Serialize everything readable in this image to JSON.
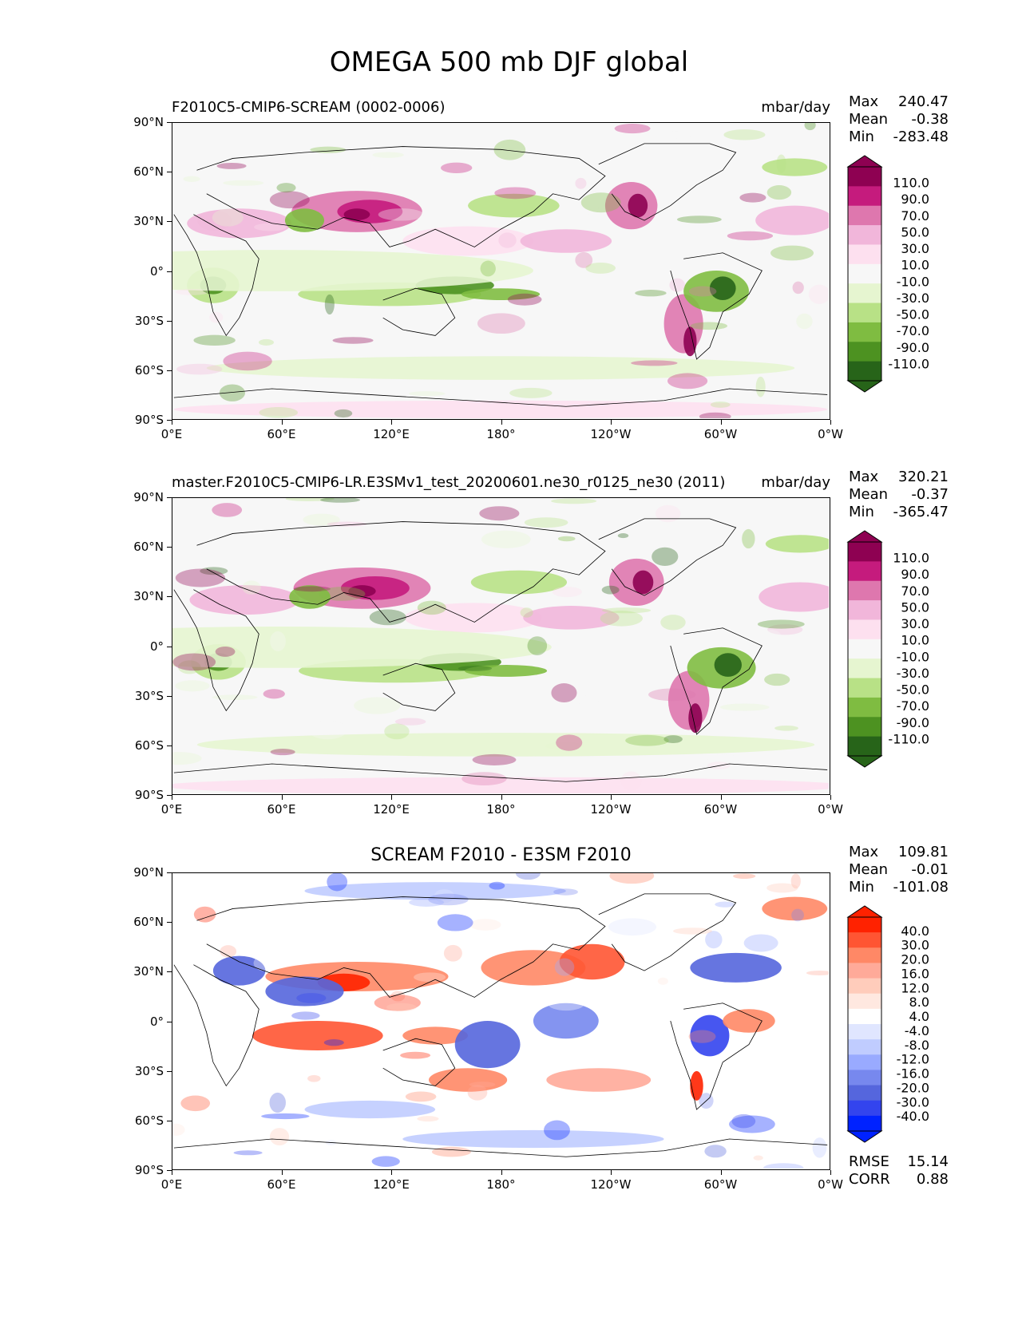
{
  "title": "OMEGA 500 mb DJF global",
  "colors": {
    "sequential_pink_green": [
      "#8e0152",
      "#c51b7d",
      "#de77ae",
      "#f1b6da",
      "#fde0ef",
      "#f7f7f7",
      "#e6f5d0",
      "#b8e186",
      "#7fbc41",
      "#4d9221",
      "#276419"
    ],
    "diverging_red_blue": [
      "#ff2200",
      "#ff5533",
      "#ff8866",
      "#ffaa99",
      "#ffccbb",
      "#ffe8e0",
      "#ffffff",
      "#e0e6ff",
      "#c0ccff",
      "#99aaff",
      "#7788ee",
      "#5566dd",
      "#3344ee",
      "#0022ff"
    ]
  },
  "panels": [
    {
      "left_title": "F2010C5-CMIP6-SCREAM (0002-0006)",
      "right_title": "mbar/day",
      "stats": [
        {
          "label": "Max",
          "value": "240.47"
        },
        {
          "label": "Mean",
          "value": "-0.38"
        },
        {
          "label": "Min",
          "value": "-283.48"
        }
      ],
      "colorbar": {
        "labels": [
          "110.0",
          "90.0",
          "70.0",
          "50.0",
          "30.0",
          "10.0",
          "-10.0",
          "-30.0",
          "-50.0",
          "-70.0",
          "-90.0",
          "-110.0"
        ],
        "extend": "both",
        "palette": "sequential_pink_green"
      }
    },
    {
      "left_title": "master.F2010C5-CMIP6-LR.E3SMv1_test_20200601.ne30_r0125_ne30 (2011)",
      "right_title": "mbar/day",
      "stats": [
        {
          "label": "Max",
          "value": "320.21"
        },
        {
          "label": "Mean",
          "value": "-0.37"
        },
        {
          "label": "Min",
          "value": "-365.47"
        }
      ],
      "colorbar": {
        "labels": [
          "110.0",
          "90.0",
          "70.0",
          "50.0",
          "30.0",
          "10.0",
          "-10.0",
          "-30.0",
          "-50.0",
          "-70.0",
          "-90.0",
          "-110.0"
        ],
        "extend": "both",
        "palette": "sequential_pink_green"
      }
    },
    {
      "center_title": "SCREAM F2010 - E3SM F2010",
      "stats": [
        {
          "label": "Max",
          "value": "109.81"
        },
        {
          "label": "Mean",
          "value": "-0.01"
        },
        {
          "label": "Min",
          "value": "-101.08"
        }
      ],
      "colorbar": {
        "labels": [
          "40.0",
          "30.0",
          "20.0",
          "16.0",
          "12.0",
          "8.0",
          "4.0",
          "-4.0",
          "-8.0",
          "-12.0",
          "-16.0",
          "-20.0",
          "-30.0",
          "-40.0"
        ],
        "extend": "both",
        "palette": "diverging_red_blue"
      },
      "metrics": [
        {
          "label": "RMSE",
          "value": "15.14"
        },
        {
          "label": "CORR",
          "value": "0.88"
        }
      ]
    }
  ],
  "axes": {
    "y_ticks": [
      "90°N",
      "60°N",
      "30°N",
      "0°",
      "30°S",
      "60°S",
      "90°S"
    ],
    "x_ticks": [
      "0°E",
      "60°E",
      "120°E",
      "180°",
      "120°W",
      "60°W",
      "0°W"
    ]
  }
}
